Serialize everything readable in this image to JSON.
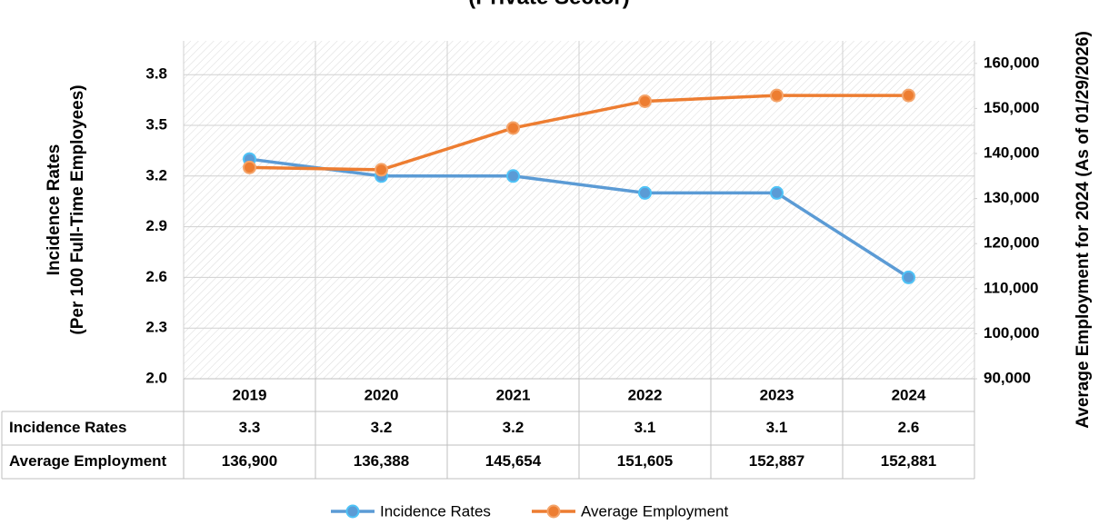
{
  "chart_data": {
    "type": "line",
    "title": "(Private Sector)",
    "ylabel": [
      "Incidence Rates",
      "(Per 100 Full-Time Employees)"
    ],
    "y2label": "Average Employment for 2024 (As of 01/29/2026)",
    "categories": [
      "2019",
      "2020",
      "2021",
      "2022",
      "2023",
      "2024"
    ],
    "series": [
      {
        "name": "Incidence Rates",
        "color": "#5b9bd5",
        "values": [
          3.3,
          3.2,
          3.2,
          3.1,
          3.1,
          2.6
        ]
      },
      {
        "name": "Average Employment",
        "color": "#ed7d31",
        "axis": "y2",
        "values": [
          136900,
          136388,
          145654,
          151605,
          152887,
          152881
        ],
        "value_labels": [
          "136,900",
          "136,388",
          "145,654",
          "151,605",
          "152,887",
          "152,881"
        ]
      }
    ],
    "ylim": [
      2.0,
      4.0
    ],
    "yticks": [
      {
        "value": 2.0,
        "label": "2.0"
      },
      2.3,
      2.6,
      2.9,
      3.2,
      3.5,
      3.8
    ],
    "y2lim": [
      90000,
      165000
    ],
    "y2ticks": [
      {
        "value": 90000,
        "label": "90,000"
      },
      {
        "value": 100000,
        "label": "100,000"
      },
      {
        "value": 110000,
        "label": "110,000"
      },
      {
        "value": 120000,
        "label": "120,000"
      },
      {
        "value": 130000,
        "label": "130,000"
      },
      {
        "value": 140000,
        "label": "140,000"
      },
      {
        "value": 150000,
        "label": "150,000"
      },
      {
        "value": 160000,
        "label": "160,000"
      }
    ],
    "grid": true,
    "legend": "bottom"
  }
}
